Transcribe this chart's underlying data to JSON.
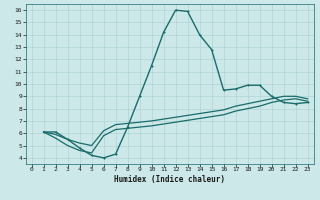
{
  "bg_color": "#cce8e8",
  "line_color": "#1a6b6b",
  "grid_color": "#b0d4d4",
  "xlabel": "Humidex (Indice chaleur)",
  "xlim": [
    -0.5,
    23.5
  ],
  "ylim": [
    3.5,
    16.5
  ],
  "xticks": [
    0,
    1,
    2,
    3,
    4,
    5,
    6,
    7,
    8,
    9,
    10,
    11,
    12,
    13,
    14,
    15,
    16,
    17,
    18,
    19,
    20,
    21,
    22,
    23
  ],
  "yticks": [
    4,
    5,
    6,
    7,
    8,
    9,
    10,
    11,
    12,
    13,
    14,
    15,
    16
  ],
  "series_main": {
    "x": [
      1,
      2,
      3,
      4,
      5,
      6,
      7,
      8,
      9,
      10,
      11,
      12,
      13,
      14,
      15,
      16,
      17,
      18,
      19,
      20,
      21,
      22,
      23
    ],
    "y": [
      6.1,
      6.1,
      5.5,
      4.8,
      4.2,
      4.0,
      4.3,
      6.5,
      9.0,
      11.5,
      14.2,
      16.0,
      15.9,
      14.0,
      12.8,
      9.5,
      9.6,
      9.9,
      9.9,
      9.0,
      8.5,
      8.4,
      8.5
    ],
    "linewidth": 1.0,
    "markersize": 2.0
  },
  "series_line1": {
    "x": [
      1,
      2,
      3,
      4,
      5,
      6,
      7,
      10,
      16,
      17,
      18,
      19,
      20,
      21,
      22,
      23
    ],
    "y": [
      6.1,
      5.6,
      5.0,
      4.6,
      4.4,
      5.8,
      6.3,
      6.6,
      7.5,
      7.8,
      8.0,
      8.2,
      8.5,
      8.7,
      8.8,
      8.6
    ],
    "linewidth": 0.9
  },
  "series_line2": {
    "x": [
      1,
      2,
      3,
      4,
      5,
      6,
      7,
      10,
      16,
      17,
      18,
      19,
      20,
      21,
      22,
      23
    ],
    "y": [
      6.1,
      5.9,
      5.5,
      5.2,
      5.0,
      6.2,
      6.7,
      7.0,
      7.9,
      8.2,
      8.4,
      8.6,
      8.8,
      9.0,
      9.0,
      8.8
    ],
    "linewidth": 0.9
  }
}
